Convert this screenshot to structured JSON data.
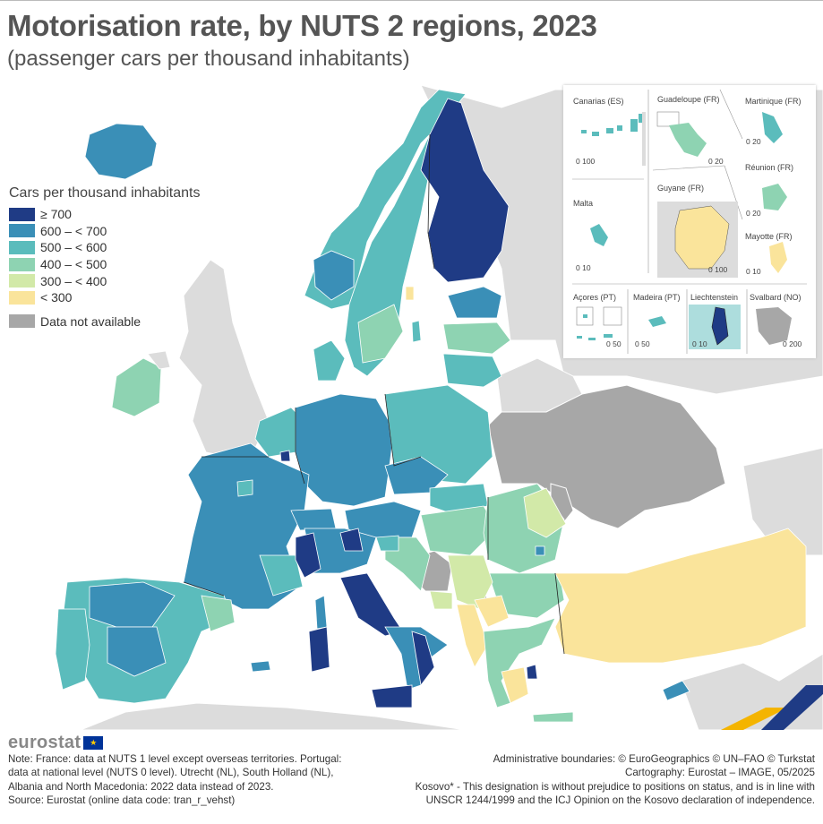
{
  "header": {
    "title": "Motorisation rate, by NUTS 2 regions, 2023",
    "subtitle": "(passenger cars per thousand inhabitants)"
  },
  "legend": {
    "title": "Cars per thousand inhabitants",
    "items": [
      {
        "label": "≥ 700",
        "color": "#1f3b85"
      },
      {
        "label": "600 – < 700",
        "color": "#3a8fb7"
      },
      {
        "label": "500 – < 600",
        "color": "#5bbcbc"
      },
      {
        "label": "400 – < 500",
        "color": "#8ed3b2"
      },
      {
        "label": "300 – < 400",
        "color": "#d2e9a8"
      },
      {
        "label": "< 300",
        "color": "#fae49b"
      }
    ],
    "na": {
      "label": "Data not available",
      "color": "#a7a7a7"
    }
  },
  "colors": {
    "non_eu": "#dcdcdc",
    "sea": "#ffffff",
    "border": "#222222"
  },
  "insets": [
    {
      "name": "Canarias (ES)",
      "scale": "0  100"
    },
    {
      "name": "Guadeloupe (FR)",
      "scale": "0  20"
    },
    {
      "name": "Martinique (FR)",
      "scale": "0  20"
    },
    {
      "name": "Réunion (FR)",
      "scale": "0  20"
    },
    {
      "name": "Malta",
      "scale": "0  10"
    },
    {
      "name": "Guyane (FR)",
      "scale": "0  100"
    },
    {
      "name": "Mayotte (FR)",
      "scale": "0  10"
    },
    {
      "name": "Açores (PT)",
      "scale": "0  50"
    },
    {
      "name": "Madeira (PT)",
      "scale": "0  50"
    },
    {
      "name": "Liechtenstein",
      "scale": "0  10"
    },
    {
      "name": "Svalbard (NO)",
      "scale": "0  200"
    }
  ],
  "footer": {
    "logo": "eurostat",
    "notes": [
      "Note: France: data at NUTS 1 level except overseas territories. Portugal:",
      "data at national level (NUTS 0 level). Utrecht (NL), South Holland (NL),",
      "Albania and North Macedonia: 2022 data instead of 2023.",
      "Source: Eurostat (online data code: tran_r_vehst)"
    ],
    "credits": [
      "Administrative boundaries: © EuroGeographics © UN–FAO © Turkstat",
      "Cartography: Eurostat – IMAGE, 05/2025",
      "Kosovo* - This designation is without prejudice to positions on status, and is in line with",
      "UNSCR 1244/1999 and the ICJ Opinion on the Kosovo declaration of independence."
    ]
  }
}
